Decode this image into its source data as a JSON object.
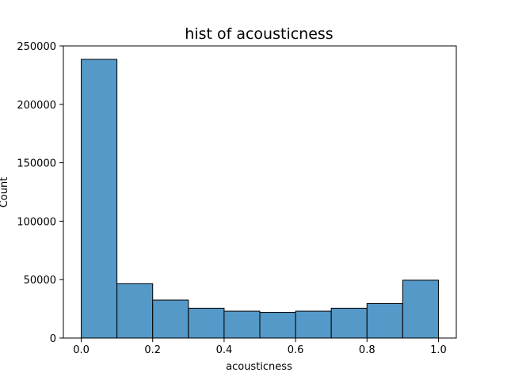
{
  "chart_data": {
    "type": "bar",
    "title": "hist of acousticness",
    "xlabel": "acousticness",
    "ylabel": "Count",
    "bin_edges": [
      0.0,
      0.1,
      0.2,
      0.3,
      0.4,
      0.5,
      0.6,
      0.7,
      0.8,
      0.9,
      1.0
    ],
    "values": [
      238500,
      46500,
      32500,
      25500,
      23000,
      22000,
      23000,
      25500,
      29500,
      49500
    ],
    "xlim": [
      -0.05,
      1.05
    ],
    "ylim": [
      0,
      250000
    ],
    "x_ticks": [
      0.0,
      0.2,
      0.4,
      0.6,
      0.8,
      1.0
    ],
    "x_tick_labels": [
      "0.0",
      "0.2",
      "0.4",
      "0.6",
      "0.8",
      "1.0"
    ],
    "y_ticks": [
      0,
      50000,
      100000,
      150000,
      200000,
      250000
    ],
    "y_tick_labels": [
      "0",
      "50000",
      "100000",
      "150000",
      "200000",
      "250000"
    ],
    "bar_color": "#5499c7",
    "edge_color": "#000000",
    "grid": false
  }
}
